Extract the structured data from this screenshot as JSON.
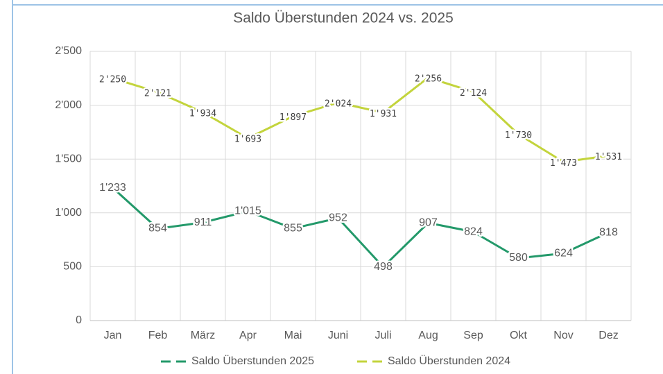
{
  "chart_data": {
    "type": "line",
    "title": "Saldo Überstunden 2024 vs. 2025",
    "categories": [
      "Jan",
      "Feb",
      "März",
      "Apr",
      "Mai",
      "Juni",
      "Juli",
      "Aug",
      "Sep",
      "Okt",
      "Nov",
      "Dez"
    ],
    "series": [
      {
        "name": "Saldo Überstunden 2025",
        "color": "#23996a",
        "values": [
          1233,
          854,
          911,
          1015,
          855,
          952,
          498,
          907,
          824,
          580,
          624,
          818
        ],
        "value_labels": [
          "1'233",
          "854",
          "911",
          "1'015",
          "855",
          "952",
          "498",
          "907",
          "824",
          "580",
          "624",
          "818"
        ]
      },
      {
        "name": "Saldo Überstunden 2024",
        "color": "#c3d43c",
        "values": [
          2250,
          2121,
          1934,
          1693,
          1897,
          2024,
          1931,
          2256,
          2124,
          1730,
          1473,
          1531
        ],
        "value_labels": [
          "2'250",
          "2'121",
          "1'934",
          "1'693",
          "1'897",
          "2'024",
          "1'931",
          "2'256",
          "2'124",
          "1'730",
          "1'473",
          "1'531"
        ]
      }
    ],
    "ylim": [
      0,
      2500
    ],
    "yticks": [
      0,
      500,
      {
        "value": 1000,
        "label": "1'000"
      },
      {
        "value": 1500,
        "label": "1'500"
      },
      {
        "value": 2000,
        "label": "2'000"
      },
      {
        "value": 2500,
        "label": "2'500"
      }
    ],
    "grid": true
  }
}
